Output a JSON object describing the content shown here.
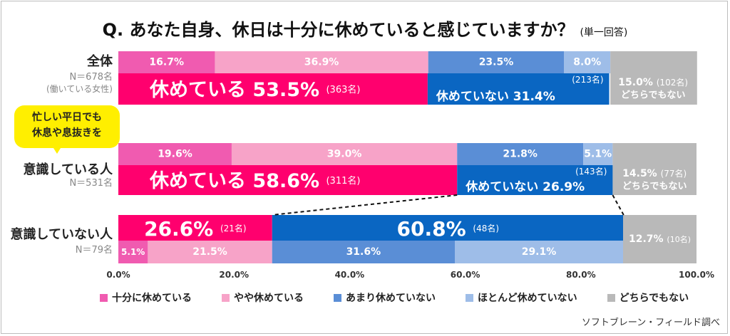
{
  "title": {
    "main": "Q.  あなた自身、休日は十分に休めていると感じていますか？",
    "note": "(単一回答)"
  },
  "callout": {
    "line1": "忙しい平日でも",
    "line2": "休息や息抜きを"
  },
  "source": "ソフトブレーン・フィールド調べ",
  "colors": {
    "very": "#f05bb0",
    "somewhat": "#f7a3c8",
    "not_really": "#5a8ed6",
    "not_at_all": "#9ebde8",
    "neither": "#b9b9b9",
    "rested_total": "#ff006e",
    "not_rested_total": "#0a66c2"
  },
  "chart_data": {
    "type": "bar",
    "orientation": "horizontal",
    "stacked": true,
    "xlim": [
      0,
      100
    ],
    "ticks": [
      "0.0%",
      "20.0%",
      "40.0%",
      "60.0%",
      "80.0%",
      "100.0%"
    ],
    "legend": [
      {
        "key": "very",
        "label": "十分に休めている"
      },
      {
        "key": "somewhat",
        "label": "やや休めている"
      },
      {
        "key": "not_really",
        "label": "あまり休めていない"
      },
      {
        "key": "not_at_all",
        "label": "ほとんど休めていない"
      },
      {
        "key": "neither",
        "label": "どちらでもない"
      }
    ],
    "groups": [
      {
        "label": "全体",
        "n": "N＝678名",
        "note": "(働いている女性)",
        "very": 16.7,
        "very_label": "16.7%",
        "somewhat": 36.9,
        "somewhat_label": "36.9%",
        "not_really": 23.5,
        "not_really_label": "23.5%",
        "not_at_all": 8.0,
        "not_at_all_label": "8.0%",
        "neither": 15.0,
        "neither_label": "15.0%",
        "neither_n": "(102名)",
        "neither_text": "どちらでもない",
        "rested_text": "休めている",
        "rested_value": 53.5,
        "rested_label": "53.5%",
        "rested_n": "(363名)",
        "not_rested_text": "休めていない",
        "not_rested_value": 31.4,
        "not_rested_label": "31.4%",
        "not_rested_n": "(213名)"
      },
      {
        "label": "意識している人",
        "n": "N＝531名",
        "note": "",
        "very": 19.6,
        "very_label": "19.6%",
        "somewhat": 39.0,
        "somewhat_label": "39.0%",
        "not_really": 21.8,
        "not_really_label": "21.8%",
        "not_at_all": 5.1,
        "not_at_all_label": "5.1%",
        "neither": 14.5,
        "neither_label": "14.5%",
        "neither_n": "(77名)",
        "neither_text": "どちらでもない",
        "rested_text": "休めている",
        "rested_value": 58.6,
        "rested_label": "58.6%",
        "rested_n": "(311名)",
        "not_rested_text": "休めていない",
        "not_rested_value": 26.9,
        "not_rested_label": "26.9%",
        "not_rested_n": "(143名)"
      },
      {
        "label": "意識していない人",
        "n": "N＝79名",
        "note": "",
        "very": 5.1,
        "very_label": "5.1%",
        "somewhat": 21.5,
        "somewhat_label": "21.5%",
        "not_really": 31.6,
        "not_really_label": "31.6%",
        "not_at_all": 29.1,
        "not_at_all_label": "29.1%",
        "neither": 12.7,
        "neither_label": "12.7%",
        "neither_n": "(10名)",
        "neither_text": "",
        "rested_text": "",
        "rested_value": 26.6,
        "rested_label": "26.6%",
        "rested_n": "(21名)",
        "not_rested_text": "",
        "not_rested_value": 60.8,
        "not_rested_label": "60.8%",
        "not_rested_n": "(48名)"
      }
    ]
  }
}
